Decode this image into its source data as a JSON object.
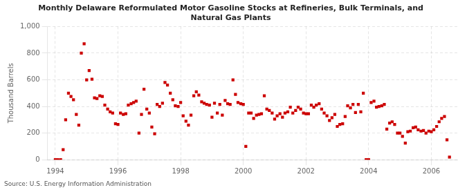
{
  "chart_data": {
    "type": "scatter",
    "title": "Monthly Delaware Reformulated Motor Gasoline Stocks at Refineries, Bulk Terminals, and\nNatural Gas Plants",
    "ylabel": "Thousand Barrels",
    "source": "Source: U.S. Energy Information Administration",
    "color": "#cc0000",
    "marker": "square",
    "grid": true,
    "xlim": [
      1993.75,
      2006.83
    ],
    "xticks": [
      1994,
      1996,
      1998,
      2000,
      2002,
      2004,
      2006
    ],
    "ylim": [
      0,
      1000
    ],
    "yticks": [
      0,
      200,
      400,
      600,
      800,
      {
        "value": 1000,
        "label": "1,000"
      }
    ],
    "x": [
      1994.0,
      1994.08,
      1994.17,
      1994.25,
      1994.33,
      1994.42,
      1994.5,
      1994.58,
      1994.67,
      1994.75,
      1994.83,
      1994.92,
      1995.0,
      1995.08,
      1995.17,
      1995.25,
      1995.33,
      1995.42,
      1995.5,
      1995.58,
      1995.67,
      1995.75,
      1995.83,
      1995.92,
      1996.0,
      1996.08,
      1996.17,
      1996.25,
      1996.33,
      1996.42,
      1996.5,
      1996.58,
      1996.67,
      1996.75,
      1996.83,
      1996.92,
      1997.0,
      1997.08,
      1997.17,
      1997.25,
      1997.33,
      1997.42,
      1997.5,
      1997.58,
      1997.67,
      1997.75,
      1997.83,
      1997.92,
      1998.0,
      1998.08,
      1998.17,
      1998.25,
      1998.33,
      1998.42,
      1998.5,
      1998.58,
      1998.67,
      1998.75,
      1998.83,
      1998.92,
      1999.0,
      1999.08,
      1999.17,
      1999.25,
      1999.33,
      1999.42,
      1999.5,
      1999.58,
      1999.67,
      1999.75,
      1999.83,
      1999.92,
      2000.0,
      2000.08,
      2000.17,
      2000.25,
      2000.33,
      2000.42,
      2000.5,
      2000.58,
      2000.67,
      2000.75,
      2000.83,
      2000.92,
      2001.0,
      2001.08,
      2001.17,
      2001.25,
      2001.33,
      2001.42,
      2001.5,
      2001.58,
      2001.67,
      2001.75,
      2001.83,
      2001.92,
      2002.0,
      2002.08,
      2002.17,
      2002.25,
      2002.33,
      2002.42,
      2002.5,
      2002.58,
      2002.67,
      2002.75,
      2002.83,
      2002.92,
      2003.0,
      2003.08,
      2003.17,
      2003.25,
      2003.33,
      2003.42,
      2003.5,
      2003.58,
      2003.67,
      2003.75,
      2003.83,
      2003.92,
      2004.0,
      2004.08,
      2004.17,
      2004.25,
      2004.33,
      2004.42,
      2004.5,
      2004.58,
      2004.67,
      2004.75,
      2004.83,
      2004.92,
      2005.0,
      2005.08,
      2005.17,
      2005.25,
      2005.33,
      2005.42,
      2005.5,
      2005.58,
      2005.67,
      2005.75,
      2005.83,
      2005.92,
      2006.0,
      2006.08,
      2006.17,
      2006.25,
      2006.33,
      2006.42,
      2006.5,
      2006.58
    ],
    "values": [
      0,
      0,
      0,
      75,
      300,
      500,
      475,
      450,
      340,
      260,
      800,
      870,
      600,
      670,
      605,
      465,
      460,
      480,
      475,
      410,
      380,
      360,
      350,
      270,
      265,
      350,
      340,
      345,
      410,
      420,
      430,
      440,
      200,
      340,
      530,
      380,
      350,
      245,
      195,
      415,
      400,
      425,
      580,
      560,
      500,
      450,
      405,
      400,
      430,
      330,
      290,
      260,
      335,
      480,
      510,
      485,
      435,
      425,
      415,
      410,
      320,
      425,
      350,
      415,
      335,
      445,
      420,
      415,
      600,
      490,
      430,
      420,
      415,
      100,
      350,
      350,
      310,
      335,
      340,
      345,
      480,
      380,
      370,
      350,
      305,
      330,
      345,
      320,
      350,
      360,
      395,
      350,
      370,
      395,
      380,
      350,
      345,
      345,
      410,
      395,
      410,
      420,
      380,
      350,
      330,
      295,
      315,
      340,
      250,
      265,
      270,
      325,
      405,
      390,
      415,
      355,
      415,
      360,
      500,
      0,
      0,
      430,
      440,
      395,
      400,
      405,
      415,
      230,
      275,
      285,
      265,
      200,
      200,
      175,
      125,
      210,
      215,
      240,
      245,
      225,
      215,
      220,
      200,
      215,
      210,
      225,
      250,
      285,
      310,
      325,
      150,
      20
    ]
  }
}
